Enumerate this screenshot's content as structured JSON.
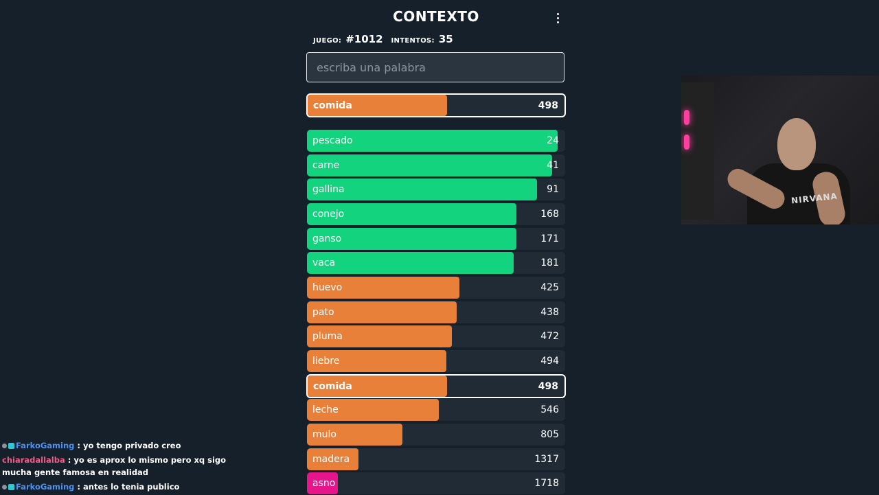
{
  "app": {
    "title": "CONTEXTO",
    "stats": {
      "game_label": "JUEGO:",
      "game_value": "#1012",
      "attempts_label": "INTENTOS:",
      "attempts_value": "35"
    },
    "search": {
      "placeholder": "escriba una palabra",
      "value": ""
    },
    "current_guess": {
      "word": "comida",
      "distance": "498",
      "fraction": 0.54,
      "color": "#e8803a"
    },
    "guesses": [
      {
        "word": "pescado",
        "distance": "24",
        "fraction": 0.97,
        "color": "#14d37f"
      },
      {
        "word": "carne",
        "distance": "41",
        "fraction": 0.95,
        "color": "#14d37f"
      },
      {
        "word": "gallina",
        "distance": "91",
        "fraction": 0.89,
        "color": "#14d37f"
      },
      {
        "word": "conejo",
        "distance": "168",
        "fraction": 0.81,
        "color": "#14d37f"
      },
      {
        "word": "ganso",
        "distance": "171",
        "fraction": 0.81,
        "color": "#14d37f"
      },
      {
        "word": "vaca",
        "distance": "181",
        "fraction": 0.8,
        "color": "#14d37f"
      },
      {
        "word": "huevo",
        "distance": "425",
        "fraction": 0.59,
        "color": "#e8803a"
      },
      {
        "word": "pato",
        "distance": "438",
        "fraction": 0.58,
        "color": "#e8803a"
      },
      {
        "word": "pluma",
        "distance": "472",
        "fraction": 0.56,
        "color": "#e8803a"
      },
      {
        "word": "liebre",
        "distance": "494",
        "fraction": 0.54,
        "color": "#e8803a"
      },
      {
        "word": "comida",
        "distance": "498",
        "fraction": 0.54,
        "color": "#e8803a",
        "current": true
      },
      {
        "word": "leche",
        "distance": "546",
        "fraction": 0.51,
        "color": "#e8803a"
      },
      {
        "word": "mulo",
        "distance": "805",
        "fraction": 0.37,
        "color": "#e8803a"
      },
      {
        "word": "madera",
        "distance": "1317",
        "fraction": 0.2,
        "color": "#e8803a"
      },
      {
        "word": "asno",
        "distance": "1718",
        "fraction": 0.12,
        "color": "#e6168a"
      }
    ]
  },
  "webcam": {
    "shirt_text": "NIRVANA"
  },
  "chat": [
    {
      "user": "FarkoGaming",
      "user_color": "#4d8ff0",
      "badges": true,
      "text": ": yo tengo privado creo"
    },
    {
      "user": "chiaradallalba",
      "user_color": "#ef5d87",
      "badges": false,
      "text": ": yo es aprox lo mismo pero xq sigo mucha gente famosa en realidad"
    },
    {
      "user": "FarkoGaming",
      "user_color": "#4d8ff0",
      "badges": true,
      "text": ": antes lo tenia publico"
    }
  ]
}
